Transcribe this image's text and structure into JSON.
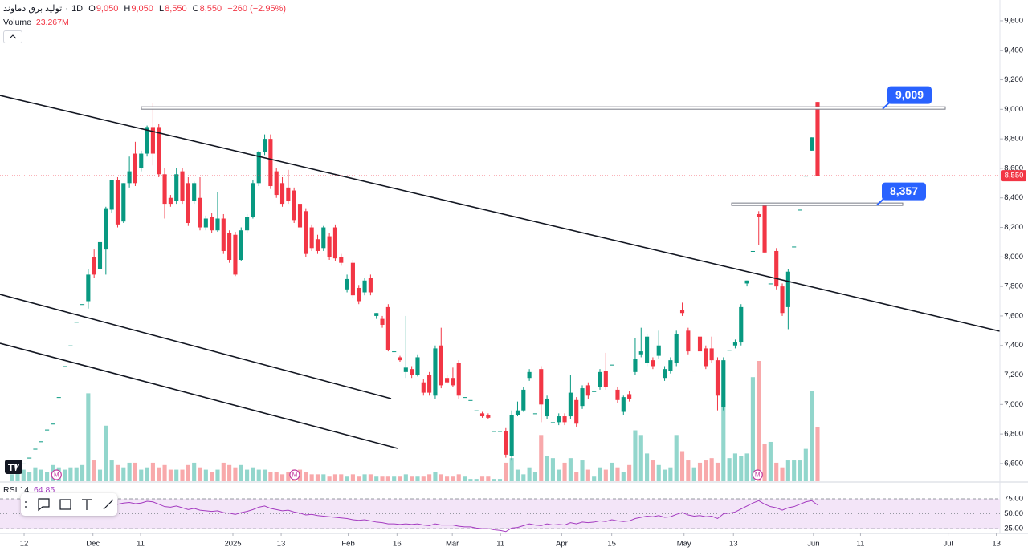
{
  "chart_data": {
    "type": "candlestick",
    "header": {
      "title": "تولید برق دماوند",
      "interval": "1D",
      "ohlc": [
        {
          "key": "O",
          "value": "9,050"
        },
        {
          "key": "H",
          "value": "9,050"
        },
        {
          "key": "L",
          "value": "8,550"
        },
        {
          "key": "C",
          "value": "8,550"
        }
      ],
      "change": "−260 (−2.95%)"
    },
    "volume_legend": {
      "name": "Volume",
      "value": "23.267M"
    },
    "rsi_legend": {
      "name": "RSI 14",
      "value": "64.85"
    },
    "up_color": "#089981",
    "down_color": "#f23645",
    "up_volume_color": "#92d6cc",
    "down_volume_color": "#f8a9ab",
    "rsi_color": "#a43bc0",
    "grid": false,
    "xlim": [
      -2,
      168
    ],
    "xticks": [
      {
        "value": 2.1,
        "label": "12"
      },
      {
        "value": 13.8,
        "label": "Dec"
      },
      {
        "value": 21.9,
        "label": "11"
      },
      {
        "value": 37.6,
        "label": "2025"
      },
      {
        "value": 45.8,
        "label": "13"
      },
      {
        "value": 57.2,
        "label": "Feb"
      },
      {
        "value": 65.5,
        "label": "16"
      },
      {
        "value": 74.9,
        "label": "Mar"
      },
      {
        "value": 83.1,
        "label": "11"
      },
      {
        "value": 93.5,
        "label": "Apr"
      },
      {
        "value": 102,
        "label": "15"
      },
      {
        "value": 114.3,
        "label": "May"
      },
      {
        "value": 122.7,
        "label": "13"
      },
      {
        "value": 136.3,
        "label": "Jun"
      },
      {
        "value": 144.3,
        "label": "11"
      },
      {
        "value": 159.2,
        "label": "Jul"
      },
      {
        "value": 167.4,
        "label": "13"
      }
    ],
    "ylim": [
      6480,
      9741
    ],
    "yticks": [
      {
        "value": 6600,
        "label": "6,600"
      },
      {
        "value": 6800,
        "label": "6,800"
      },
      {
        "value": 7000,
        "label": "7,000"
      },
      {
        "value": 7200,
        "label": "7,200"
      },
      {
        "value": 7400,
        "label": "7,400"
      },
      {
        "value": 7600,
        "label": "7,600"
      },
      {
        "value": 7800,
        "label": "7,800"
      },
      {
        "value": 8000,
        "label": "8,000"
      },
      {
        "value": 8200,
        "label": "8,200"
      },
      {
        "value": 8400,
        "label": "8,400"
      },
      {
        "value": 8600,
        "label": "8,600"
      },
      {
        "value": 8800,
        "label": "8,800"
      },
      {
        "value": 9000,
        "label": "9,000"
      },
      {
        "value": 9200,
        "label": "9,200"
      },
      {
        "value": 9400,
        "label": "9,400"
      },
      {
        "value": 9600,
        "label": "9,600"
      }
    ],
    "volume_lim": [
      0,
      208
    ],
    "rsi_lim": [
      17,
      98
    ],
    "rsi_ticks": [
      {
        "value": 75,
        "label": "75.00"
      },
      {
        "value": 50,
        "label": "50.00"
      },
      {
        "value": 25,
        "label": "25.00"
      }
    ],
    "price_marker": {
      "value": 8550,
      "label": "8,550"
    },
    "levels": [
      {
        "value": 9009,
        "label": "9,009"
      },
      {
        "value": 8357,
        "label": "8,357"
      }
    ],
    "events": [
      {
        "x": 7.6,
        "label": "M"
      },
      {
        "x": 48.1,
        "label": "M"
      },
      {
        "x": 126.8,
        "label": "M"
      }
    ],
    "candles": [
      [
        6540,
        6540,
        6540,
        6540
      ],
      [
        6570,
        6570,
        6570,
        6570
      ],
      [
        6600,
        6600,
        6600,
        6600
      ],
      [
        6640,
        6640,
        6640,
        6640
      ],
      [
        6700,
        6700,
        6700,
        6700
      ],
      [
        6750,
        6750,
        6750,
        6750
      ],
      [
        6830,
        6830,
        6830,
        6830
      ],
      [
        6870,
        6870,
        6870,
        6870
      ],
      [
        7050,
        7050,
        7050,
        7050
      ],
      [
        7260,
        7260,
        7260,
        7260
      ],
      [
        7400,
        7400,
        7400,
        7400
      ],
      [
        7560,
        7560,
        7560,
        7560
      ],
      [
        7680,
        7680,
        7680,
        7680
      ],
      [
        7700,
        7920,
        7650,
        7880
      ],
      [
        8000,
        8050,
        7860,
        7880
      ],
      [
        7920,
        8110,
        7900,
        8100
      ],
      [
        8050,
        8340,
        7880,
        8330
      ],
      [
        8320,
        8520,
        8300,
        8520
      ],
      [
        8520,
        8540,
        8200,
        8220
      ],
      [
        8240,
        8500,
        8230,
        8500
      ],
      [
        8500,
        8680,
        8470,
        8580
      ],
      [
        8700,
        8780,
        8480,
        8500
      ],
      [
        8600,
        8720,
        8580,
        8700
      ],
      [
        8700,
        8890,
        8680,
        8880
      ],
      [
        8880,
        9040,
        8620,
        8700
      ],
      [
        8880,
        8900,
        8540,
        8560
      ],
      [
        8560,
        8600,
        8260,
        8360
      ],
      [
        8400,
        8420,
        8340,
        8360
      ],
      [
        8380,
        8600,
        8360,
        8560
      ],
      [
        8580,
        8600,
        8360,
        8380
      ],
      [
        8500,
        8540,
        8210,
        8230
      ],
      [
        8380,
        8510,
        8360,
        8500
      ],
      [
        8400,
        8540,
        8180,
        8200
      ],
      [
        8200,
        8280,
        8180,
        8260
      ],
      [
        8270,
        8300,
        8160,
        8180
      ],
      [
        8180,
        8440,
        8170,
        8260
      ],
      [
        8260,
        8290,
        8020,
        8040
      ],
      [
        8160,
        8180,
        7960,
        7980
      ],
      [
        8150,
        8170,
        7870,
        7880
      ],
      [
        7980,
        8200,
        7970,
        8180
      ],
      [
        8180,
        8290,
        8160,
        8270
      ],
      [
        8270,
        8520,
        8260,
        8500
      ],
      [
        8500,
        8720,
        8480,
        8710
      ],
      [
        8710,
        8830,
        8690,
        8800
      ],
      [
        8800,
        8830,
        8460,
        8480
      ],
      [
        8580,
        8600,
        8400,
        8420
      ],
      [
        8500,
        8540,
        8340,
        8360
      ],
      [
        8470,
        8590,
        8360,
        8380
      ],
      [
        8450,
        8470,
        8230,
        8250
      ],
      [
        8360,
        8380,
        8180,
        8200
      ],
      [
        8310,
        8330,
        8000,
        8020
      ],
      [
        8200,
        8220,
        8040,
        8060
      ],
      [
        8120,
        8150,
        8020,
        8040
      ],
      [
        8060,
        8210,
        8040,
        8200
      ],
      [
        8140,
        8160,
        7980,
        8000
      ],
      [
        8200,
        8220,
        7970,
        7990
      ],
      [
        8000,
        8020,
        7940,
        7960
      ],
      [
        7780,
        7880,
        7760,
        7850
      ],
      [
        7960,
        7980,
        7720,
        7740
      ],
      [
        7790,
        7810,
        7680,
        7700
      ],
      [
        7760,
        7860,
        7740,
        7840
      ],
      [
        7860,
        7880,
        7740,
        7760
      ],
      [
        7600,
        7620,
        7580,
        7620
      ],
      [
        7580,
        7600,
        7520,
        7540
      ],
      [
        7660,
        7680,
        7360,
        7370
      ],
      [
        7360,
        7360,
        7360,
        7360
      ],
      [
        7320,
        7330,
        7290,
        7300
      ],
      [
        7220,
        7600,
        7180,
        7250
      ],
      [
        7240,
        7260,
        7180,
        7200
      ],
      [
        7200,
        7340,
        7190,
        7320
      ],
      [
        7150,
        7170,
        7060,
        7080
      ],
      [
        7200,
        7220,
        7060,
        7080
      ],
      [
        7060,
        7400,
        7040,
        7380
      ],
      [
        7400,
        7520,
        7110,
        7130
      ],
      [
        7180,
        7200,
        7140,
        7150
      ],
      [
        7180,
        7250,
        7120,
        7130
      ],
      [
        7280,
        7300,
        7040,
        7060
      ],
      [
        7050,
        7050,
        7050,
        7050
      ],
      [
        7030,
        7030,
        7030,
        7030
      ],
      [
        6960,
        6960,
        6960,
        6960
      ],
      [
        6940,
        6950,
        6910,
        6920
      ],
      [
        6930,
        6940,
        6900,
        6910
      ],
      [
        6820,
        6820,
        6820,
        6820
      ],
      [
        6820,
        6820,
        6820,
        6820
      ],
      [
        6820,
        6840,
        6640,
        6660
      ],
      [
        6650,
        6960,
        6620,
        6930
      ],
      [
        6930,
        7020,
        6920,
        6960
      ],
      [
        6960,
        7120,
        6950,
        7100
      ],
      [
        7180,
        7240,
        7160,
        7220
      ],
      [
        6940,
        6940,
        6940,
        6940
      ],
      [
        7240,
        7260,
        6880,
        7000
      ],
      [
        6920,
        7060,
        6900,
        7040
      ],
      [
        6880,
        6880,
        6880,
        6880
      ],
      [
        6880,
        6940,
        6860,
        6920
      ],
      [
        6920,
        6940,
        6860,
        6880
      ],
      [
        6920,
        7200,
        6900,
        7080
      ],
      [
        7030,
        7050,
        6850,
        6870
      ],
      [
        6990,
        7130,
        6970,
        7110
      ],
      [
        7130,
        7150,
        7040,
        7060
      ],
      [
        7090,
        7090,
        7090,
        7090
      ],
      [
        7120,
        7240,
        7100,
        7220
      ],
      [
        7230,
        7350,
        7100,
        7120
      ],
      [
        7270,
        7270,
        7270,
        7270
      ],
      [
        7100,
        7120,
        7010,
        7030
      ],
      [
        6950,
        7060,
        6930,
        7050
      ],
      [
        7070,
        7090,
        7020,
        7040
      ],
      [
        7220,
        7450,
        7200,
        7310
      ],
      [
        7340,
        7520,
        7320,
        7360
      ],
      [
        7280,
        7480,
        7260,
        7460
      ],
      [
        7300,
        7320,
        7240,
        7260
      ],
      [
        7330,
        7500,
        7310,
        7400
      ],
      [
        7180,
        7260,
        7160,
        7240
      ],
      [
        7230,
        7320,
        7210,
        7300
      ],
      [
        7280,
        7500,
        7260,
        7480
      ],
      [
        7640,
        7690,
        7600,
        7620
      ],
      [
        7500,
        7520,
        7340,
        7360
      ],
      [
        7230,
        7230,
        7230,
        7230
      ],
      [
        7460,
        7500,
        7340,
        7360
      ],
      [
        7380,
        7400,
        7240,
        7260
      ],
      [
        7380,
        7460,
        7280,
        7300
      ],
      [
        7300,
        7320,
        6960,
        7060
      ],
      [
        6980,
        7320,
        6960,
        7300
      ],
      [
        7370,
        7370,
        7370,
        7370
      ],
      [
        7400,
        7440,
        7380,
        7420
      ],
      [
        7420,
        7680,
        7400,
        7660
      ],
      [
        7820,
        7840,
        7800,
        7840
      ],
      [
        8040,
        8040,
        8040,
        8040
      ],
      [
        8290,
        8310,
        8080,
        8270
      ],
      [
        8357,
        8357,
        8030,
        8030
      ],
      [
        7820,
        7820,
        7820,
        7820
      ],
      [
        8040,
        8060,
        7780,
        7800
      ],
      [
        7800,
        7820,
        7600,
        7620
      ],
      [
        7660,
        7920,
        7510,
        7900
      ],
      [
        8070,
        8070,
        8070,
        8070
      ],
      [
        8320,
        8320,
        8320,
        8320
      ],
      [
        8550,
        8550,
        8550,
        8550
      ],
      [
        8720,
        8810,
        8720,
        8810
      ],
      [
        9050,
        9050,
        8550,
        8550
      ]
    ],
    "volume": [
      3,
      4,
      5,
      4,
      6,
      5,
      4,
      7,
      6,
      5,
      6,
      6,
      7,
      38,
      9,
      5,
      24,
      9,
      7,
      6,
      8,
      8,
      5,
      6,
      8,
      6,
      7,
      5,
      5,
      5,
      7,
      8,
      6,
      5,
      4,
      5,
      8,
      7,
      6,
      7,
      5,
      6,
      5,
      5,
      4,
      4,
      3,
      4,
      5,
      5,
      4,
      3,
      3,
      3,
      2,
      3,
      3,
      2,
      3,
      2,
      3,
      3,
      2,
      2,
      2,
      2,
      2,
      3,
      2,
      2,
      2,
      3,
      4,
      3,
      2,
      2,
      3,
      2,
      1,
      1,
      2,
      2,
      1,
      1,
      8,
      10,
      5,
      3,
      6,
      4,
      20,
      11,
      10,
      5,
      8,
      10,
      4,
      9,
      5,
      2,
      6,
      5,
      8,
      6,
      4,
      7,
      22,
      20,
      12,
      9,
      7,
      5,
      6,
      20,
      13,
      9,
      6,
      8,
      9,
      10,
      8,
      35,
      10,
      12,
      11,
      12,
      45,
      52,
      16,
      17,
      8,
      6,
      9,
      9,
      9,
      14,
      39,
      23.267
    ],
    "rsi": [
      null,
      null,
      null,
      null,
      null,
      null,
      null,
      null,
      null,
      null,
      null,
      null,
      null,
      60,
      58,
      62,
      68,
      70,
      66,
      68,
      69,
      67,
      68,
      71,
      70,
      66,
      62,
      61,
      63,
      60,
      57,
      59,
      56,
      55,
      54,
      55,
      52,
      51,
      49,
      52,
      54,
      57,
      61,
      63,
      59,
      57,
      55,
      56,
      53,
      51,
      48,
      49,
      47,
      46,
      45,
      44,
      43,
      42,
      40,
      39,
      40,
      38,
      36,
      35,
      33,
      33,
      32,
      33,
      32,
      33,
      31,
      30,
      33,
      31,
      31,
      31,
      29,
      28,
      28,
      26,
      25,
      25,
      23,
      22,
      20,
      26,
      27,
      30,
      33,
      31,
      30,
      33,
      31,
      32,
      31,
      35,
      33,
      36,
      35,
      36,
      38,
      37,
      40,
      38,
      37,
      38,
      42,
      44,
      46,
      45,
      47,
      44,
      45,
      49,
      52,
      48,
      46,
      47,
      45,
      46,
      42,
      50,
      51,
      53,
      58,
      63,
      68,
      72,
      66,
      62,
      60,
      56,
      60,
      62,
      66,
      70,
      72,
      64.85
    ]
  }
}
